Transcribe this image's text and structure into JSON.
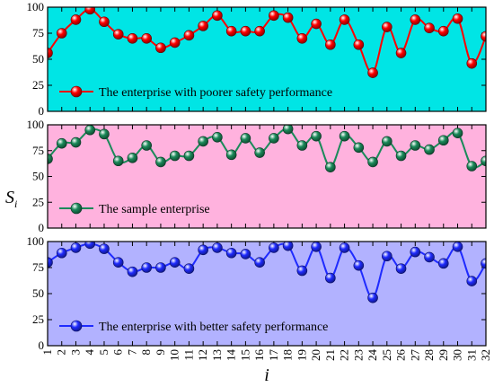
{
  "chart_data": {
    "type": "line",
    "x": [
      1,
      2,
      3,
      4,
      5,
      6,
      7,
      8,
      9,
      10,
      11,
      12,
      13,
      14,
      15,
      16,
      17,
      18,
      19,
      20,
      21,
      22,
      23,
      24,
      25,
      26,
      27,
      28,
      29,
      30,
      31,
      32
    ],
    "xlabel": "i",
    "ylabel": "S",
    "ylabel_subscript": "i",
    "ylim": [
      0,
      100
    ],
    "y_ticks": [
      "0",
      "25",
      "50",
      "75",
      "100"
    ],
    "x_tick_labels": [
      "1",
      "2",
      "3",
      "4",
      "5",
      "6",
      "7",
      "8",
      "9",
      "10",
      "11",
      "12",
      "13",
      "14",
      "15",
      "16",
      "17",
      "18",
      "19",
      "20",
      "21",
      "22",
      "23",
      "24",
      "25",
      "26",
      "27",
      "28",
      "29",
      "30",
      "31",
      "32"
    ],
    "legend_placement": "bottom-left",
    "panels": [
      {
        "series_name": "The enterprise with poorer safety performance",
        "color": "#ff0000",
        "background": "#00e5e5",
        "values": [
          56,
          75,
          88,
          98,
          86,
          74,
          70,
          70,
          61,
          66,
          73,
          82,
          92,
          77,
          77,
          77,
          92,
          90,
          70,
          84,
          64,
          88,
          64,
          37,
          81,
          56,
          88,
          80,
          77,
          89,
          46,
          72
        ]
      },
      {
        "series_name": "The sample enterprise",
        "color": "#1b8a5a",
        "background": "#ffb2de",
        "values": [
          67,
          82,
          83,
          95,
          91,
          65,
          68,
          80,
          64,
          70,
          70,
          84,
          88,
          71,
          87,
          73,
          87,
          96,
          80,
          89,
          59,
          89,
          78,
          64,
          84,
          70,
          80,
          76,
          85,
          92,
          60,
          65
        ]
      },
      {
        "series_name": "The enterprise with better safety performance",
        "color": "#1f2bff",
        "background": "#b2b2ff",
        "values": [
          80,
          89,
          94,
          98,
          93,
          80,
          71,
          75,
          75,
          80,
          74,
          92,
          94,
          89,
          88,
          80,
          94,
          96,
          72,
          95,
          65,
          94,
          77,
          46,
          86,
          74,
          90,
          85,
          79,
          95,
          62,
          79
        ]
      }
    ]
  }
}
